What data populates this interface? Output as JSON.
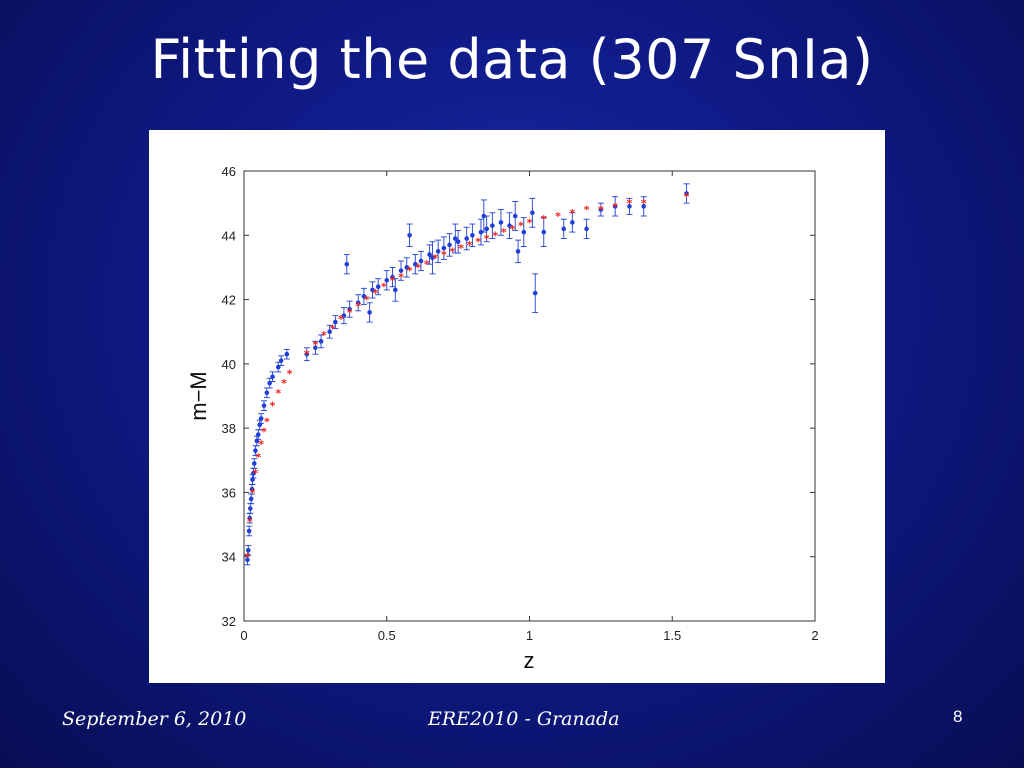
{
  "slide": {
    "title": "Fitting the data (307 SnIa)",
    "footer_date": "September 6, 2010",
    "footer_conference": "ERE2010  - Granada",
    "page_number": "8"
  },
  "colors": {
    "background": "#0f1a86",
    "data_points": "#1f3fd6",
    "fit_curve": "#e8231b"
  },
  "chart_data": {
    "type": "scatter",
    "xlabel": "z",
    "ylabel": "m−M",
    "xlim": [
      0,
      2
    ],
    "ylim": [
      32,
      46
    ],
    "x_ticks": [
      "0",
      "0.5",
      "1",
      "1.5",
      "2"
    ],
    "y_ticks": [
      "32",
      "34",
      "36",
      "38",
      "40",
      "42",
      "44",
      "46"
    ],
    "grid": false,
    "series": [
      {
        "kind": "data",
        "marker": "dot with error bars",
        "x": [
          0.012,
          0.015,
          0.018,
          0.02,
          0.022,
          0.025,
          0.028,
          0.03,
          0.033,
          0.036,
          0.04,
          0.045,
          0.05,
          0.055,
          0.06,
          0.07,
          0.08,
          0.09,
          0.1,
          0.12,
          0.13,
          0.15,
          0.22,
          0.25,
          0.27,
          0.3,
          0.32,
          0.35,
          0.37,
          0.4,
          0.42,
          0.45,
          0.47,
          0.5,
          0.52,
          0.55,
          0.57,
          0.6,
          0.62,
          0.65,
          0.68,
          0.7,
          0.72,
          0.75,
          0.78,
          0.8,
          0.83,
          0.85,
          0.87,
          0.9,
          0.93,
          0.95,
          0.98,
          1.02,
          1.05,
          1.12,
          1.15,
          1.2,
          1.25,
          1.3,
          1.35,
          1.4,
          1.55,
          0.36,
          0.58,
          0.74,
          0.84,
          0.96,
          1.01,
          0.44,
          0.53,
          0.66
        ],
        "y": [
          33.9,
          34.2,
          34.8,
          35.2,
          35.5,
          35.8,
          36.1,
          36.4,
          36.6,
          36.9,
          37.3,
          37.6,
          37.8,
          38.1,
          38.3,
          38.7,
          39.1,
          39.4,
          39.6,
          39.9,
          40.1,
          40.3,
          40.3,
          40.5,
          40.7,
          41.0,
          41.3,
          41.5,
          41.7,
          41.9,
          42.1,
          42.3,
          42.4,
          42.6,
          42.7,
          42.9,
          43.0,
          43.1,
          43.2,
          43.4,
          43.5,
          43.6,
          43.7,
          43.8,
          43.9,
          44.0,
          44.1,
          44.2,
          44.3,
          44.4,
          44.3,
          44.6,
          44.1,
          42.2,
          44.1,
          44.2,
          44.4,
          44.2,
          44.8,
          44.9,
          44.9,
          44.9,
          45.3,
          43.1,
          44.0,
          43.9,
          44.6,
          43.5,
          44.7,
          41.6,
          42.3,
          43.3
        ],
        "err": [
          0.15,
          0.15,
          0.15,
          0.15,
          0.15,
          0.15,
          0.15,
          0.15,
          0.15,
          0.15,
          0.15,
          0.15,
          0.15,
          0.15,
          0.15,
          0.15,
          0.15,
          0.15,
          0.15,
          0.15,
          0.15,
          0.15,
          0.2,
          0.2,
          0.2,
          0.2,
          0.2,
          0.25,
          0.25,
          0.25,
          0.25,
          0.25,
          0.25,
          0.3,
          0.3,
          0.3,
          0.3,
          0.3,
          0.3,
          0.3,
          0.35,
          0.35,
          0.35,
          0.35,
          0.35,
          0.35,
          0.4,
          0.4,
          0.4,
          0.4,
          0.4,
          0.45,
          0.45,
          0.6,
          0.45,
          0.3,
          0.3,
          0.3,
          0.2,
          0.3,
          0.25,
          0.3,
          0.3,
          0.3,
          0.35,
          0.45,
          0.5,
          0.35,
          0.45,
          0.3,
          0.35,
          0.5
        ]
      },
      {
        "kind": "fit",
        "marker": "asterisk",
        "x": [
          0.012,
          0.02,
          0.03,
          0.04,
          0.05,
          0.06,
          0.07,
          0.08,
          0.1,
          0.12,
          0.14,
          0.16,
          0.22,
          0.25,
          0.28,
          0.31,
          0.34,
          0.37,
          0.4,
          0.43,
          0.46,
          0.49,
          0.52,
          0.55,
          0.58,
          0.61,
          0.64,
          0.67,
          0.7,
          0.73,
          0.76,
          0.79,
          0.82,
          0.85,
          0.88,
          0.91,
          0.94,
          0.97,
          1.0,
          1.05,
          1.1,
          1.15,
          1.2,
          1.25,
          1.3,
          1.35,
          1.4,
          1.55
        ],
        "y": [
          34.0,
          35.1,
          36.0,
          36.6,
          37.1,
          37.5,
          37.9,
          38.2,
          38.7,
          39.1,
          39.4,
          39.7,
          40.3,
          40.6,
          40.9,
          41.1,
          41.4,
          41.6,
          41.8,
          42.0,
          42.2,
          42.4,
          42.6,
          42.7,
          42.9,
          43.0,
          43.1,
          43.3,
          43.4,
          43.5,
          43.6,
          43.7,
          43.8,
          43.9,
          44.0,
          44.1,
          44.2,
          44.3,
          44.4,
          44.5,
          44.6,
          44.7,
          44.8,
          44.8,
          44.9,
          45.0,
          45.0,
          45.2
        ]
      }
    ]
  }
}
